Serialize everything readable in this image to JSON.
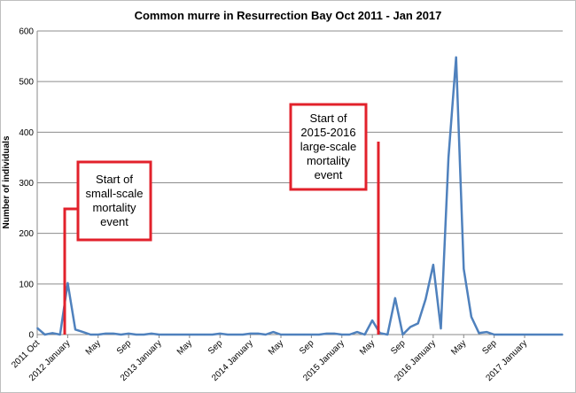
{
  "chart_data": {
    "type": "line",
    "title": "Common murre in Resurrection Bay Oct 2011 - Jan 2017",
    "xlabel": "",
    "ylabel": "Number of individuals",
    "ylim": [
      0,
      600
    ],
    "yticks": [
      0,
      100,
      200,
      300,
      400,
      500,
      600
    ],
    "grid": true,
    "legend": "none",
    "x_labels": [
      "2011 Oct",
      "2012 January",
      "May",
      "Sep",
      "2013 January",
      "May",
      "Sep",
      "2014 January",
      "May",
      "Sep",
      "2015 January",
      "May",
      "Sep",
      "2016 January",
      "May",
      "Sep",
      "2017 January"
    ],
    "series": [
      {
        "color": "#4f81bd",
        "values": [
          13,
          0,
          3,
          0,
          102,
          10,
          5,
          0,
          0,
          2,
          2,
          0,
          2,
          0,
          0,
          2,
          0,
          0,
          0,
          0,
          0,
          0,
          0,
          0,
          2,
          0,
          0,
          0,
          2,
          2,
          0,
          5,
          0,
          0,
          0,
          0,
          0,
          0,
          2,
          2,
          0,
          0,
          5,
          0,
          28,
          3,
          0,
          72,
          0,
          15,
          22,
          70,
          138,
          12,
          350,
          548,
          130,
          35,
          3,
          5,
          0,
          0,
          0,
          0,
          0,
          0,
          0,
          0,
          0,
          0
        ]
      }
    ],
    "annotations": [
      {
        "lines": [
          "Start of",
          "small-scale",
          "mortality",
          "event"
        ],
        "color": "#e2212b"
      },
      {
        "lines": [
          "Start of",
          "2015-2016",
          "large-scale",
          "mortality",
          "event"
        ],
        "color": "#e2212b"
      }
    ]
  }
}
